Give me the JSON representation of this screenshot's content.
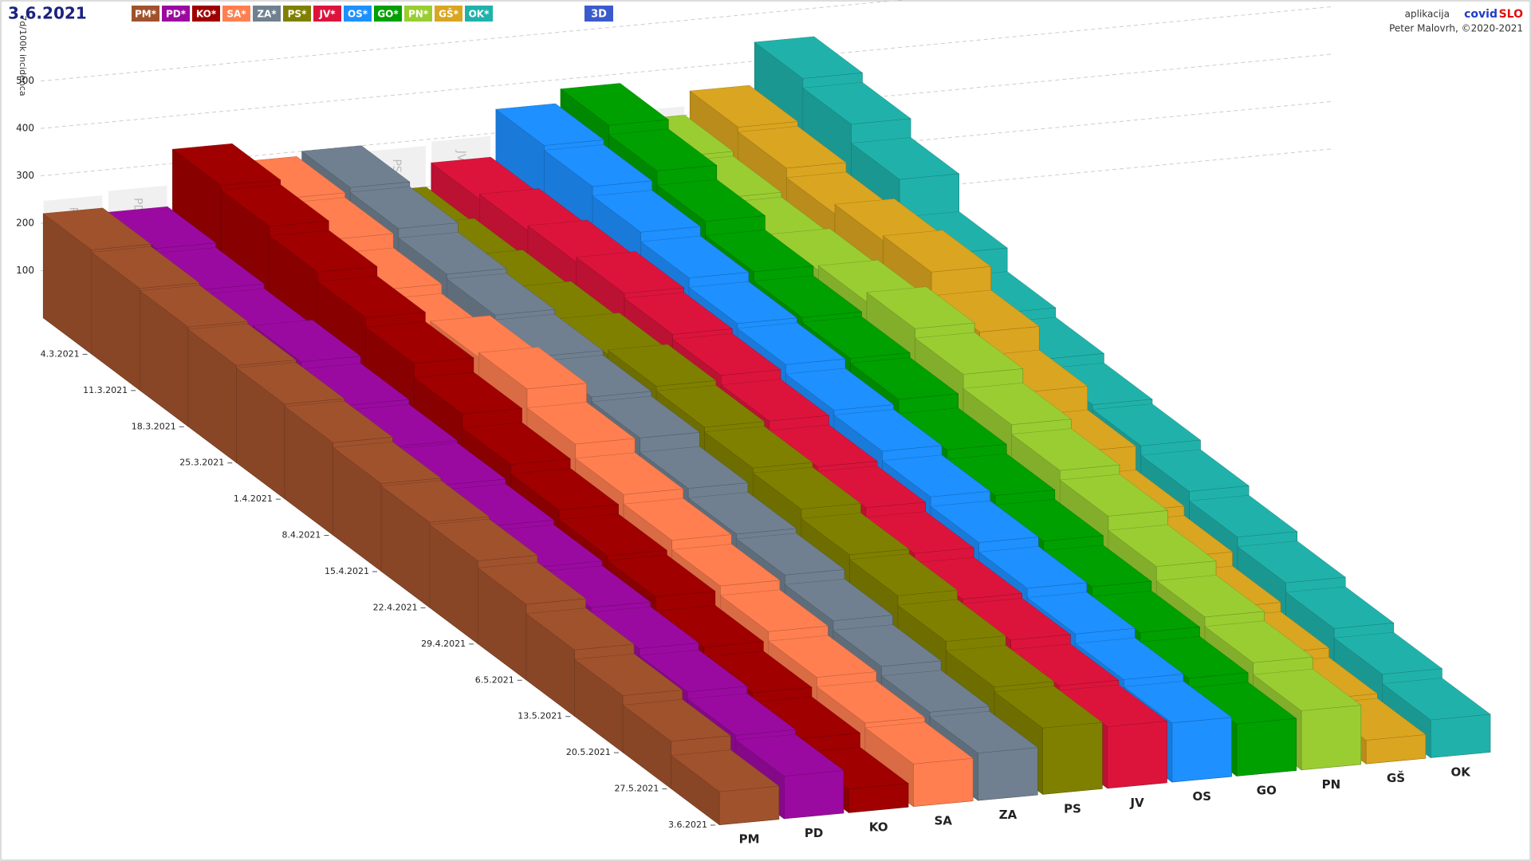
{
  "header": {
    "date": "3.6.2021",
    "button_3d": "3D",
    "app_prefix": "aplikacija",
    "app_covid": "covid",
    "app_slo": "SLO",
    "author": "Peter Malovrh, ©2020-2021"
  },
  "chart_data": {
    "type": "bar3d",
    "y_label": "7d/100k incidenca",
    "categories": [
      "4.3.2021",
      "11.3.2021",
      "18.3.2021",
      "25.3.2021",
      "1.4.2021",
      "8.4.2021",
      "15.4.2021",
      "22.4.2021",
      "29.4.2021",
      "6.5.2021",
      "13.5.2021",
      "20.5.2021",
      "27.5.2021",
      "3.6.2021"
    ],
    "legend_labels": [
      "PM*",
      "PD*",
      "KO*",
      "SA*",
      "ZA*",
      "PS*",
      "JV*",
      "OS*",
      "GO*",
      "PN*",
      "GŠ*",
      "OK*"
    ],
    "ylim": [
      0,
      550
    ],
    "yticks": [
      100,
      200,
      300,
      400,
      500
    ],
    "grid": true,
    "series": [
      {
        "name": "PM",
        "color": "#a0522d",
        "values": [
          220,
          215,
          210,
          205,
          200,
          195,
          185,
          180,
          175,
          160,
          140,
          120,
          100,
          70
        ]
      },
      {
        "name": "PD",
        "color": "#9b0aa0",
        "values": [
          210,
          200,
          190,
          200,
          185,
          175,
          170,
          160,
          150,
          140,
          130,
          115,
          100,
          90
        ]
      },
      {
        "name": "KO",
        "color": "#a00000",
        "values": [
          330,
          320,
          300,
          280,
          260,
          230,
          200,
          180,
          160,
          150,
          120,
          100,
          80,
          50
        ]
      },
      {
        "name": "SA",
        "color": "#ff7f50",
        "values": [
          290,
          280,
          250,
          230,
          260,
          270,
          230,
          200,
          180,
          160,
          140,
          120,
          100,
          90
        ]
      },
      {
        "name": "ZA",
        "color": "#708090",
        "values": [
          300,
          290,
          270,
          260,
          250,
          240,
          230,
          200,
          180,
          170,
          150,
          130,
          110,
          100
        ]
      },
      {
        "name": "PS",
        "color": "#808000",
        "values": [
          200,
          210,
          220,
          230,
          240,
          250,
          240,
          230,
          220,
          200,
          190,
          170,
          150,
          140
        ]
      },
      {
        "name": "JV",
        "color": "#dc143c",
        "values": [
          250,
          260,
          270,
          280,
          270,
          260,
          240,
          220,
          210,
          190,
          170,
          160,
          140,
          130
        ]
      },
      {
        "name": "OS",
        "color": "#1e90ff",
        "values": [
          350,
          340,
          320,
          300,
          280,
          270,
          250,
          240,
          220,
          200,
          180,
          160,
          140,
          125
        ]
      },
      {
        "name": "GO",
        "color": "#00a000",
        "values": [
          380,
          360,
          330,
          300,
          280,
          270,
          260,
          230,
          210,
          190,
          170,
          150,
          130,
          110
        ]
      },
      {
        "name": "PN",
        "color": "#9acd32",
        "values": [
          300,
          290,
          280,
          290,
          300,
          320,
          300,
          270,
          250,
          230,
          200,
          170,
          150,
          125
        ]
      },
      {
        "name": "GŠ",
        "color": "#daa520",
        "values": [
          350,
          340,
          320,
          340,
          350,
          300,
          250,
          200,
          150,
          130,
          100,
          80,
          60,
          50
        ]
      },
      {
        "name": "OK",
        "color": "#20b2aa",
        "values": [
          440,
          420,
          380,
          300,
          250,
          230,
          210,
          200,
          180,
          160,
          140,
          120,
          100,
          80
        ]
      }
    ]
  }
}
